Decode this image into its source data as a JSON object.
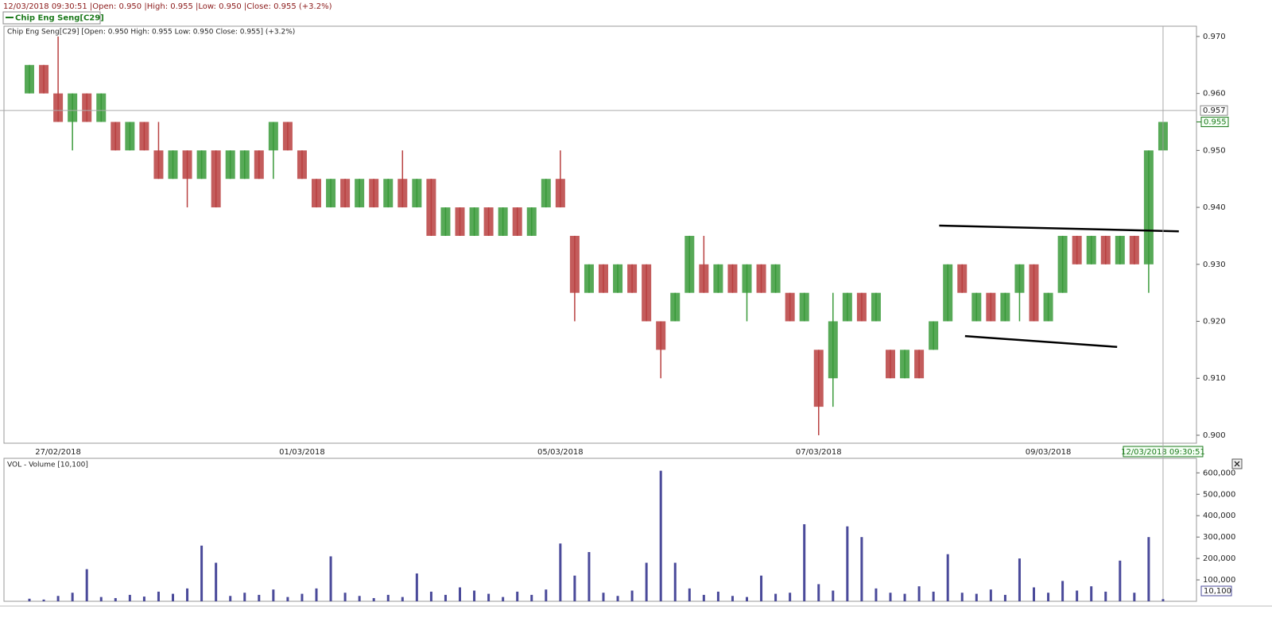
{
  "header": "12/03/2018 09:30:51 |Open: 0.950 |High: 0.955 |Low: 0.950 |Close: 0.955 (+3.2%)",
  "chart_data": [
    {
      "type": "ohlc",
      "title": "Chip Eng Seng[C29]",
      "subtitle": "Chip Eng Seng[C29] [Open: 0.950  High: 0.955  Low: 0.950  Close: 0.955] (+3.2%)",
      "categories": [
        null,
        null,
        "27/02/2018",
        null,
        null,
        null,
        null,
        null,
        null,
        null,
        null,
        null,
        null,
        null,
        null,
        null,
        null,
        null,
        null,
        "01/03/2018",
        null,
        null,
        null,
        null,
        null,
        null,
        null,
        null,
        null,
        null,
        null,
        null,
        null,
        null,
        null,
        null,
        null,
        "05/03/2018",
        null,
        null,
        null,
        null,
        null,
        null,
        null,
        null,
        null,
        null,
        null,
        null,
        null,
        null,
        null,
        null,
        null,
        "07/03/2018",
        null,
        null,
        null,
        null,
        null,
        null,
        null,
        null,
        null,
        null,
        null,
        null,
        null,
        null,
        null,
        "09/03/2018",
        null,
        null,
        null,
        null,
        null,
        null,
        null,
        "12/03/2018 09:30:51"
      ],
      "open": [
        0.96,
        0.965,
        0.96,
        0.955,
        0.96,
        0.955,
        0.955,
        0.95,
        0.955,
        0.95,
        0.945,
        0.95,
        0.945,
        0.95,
        0.945,
        0.945,
        0.95,
        0.95,
        0.955,
        0.95,
        0.945,
        0.94,
        0.945,
        0.94,
        0.945,
        0.94,
        0.945,
        0.94,
        0.945,
        0.935,
        0.94,
        0.935,
        0.94,
        0.935,
        0.94,
        0.935,
        0.94,
        0.945,
        0.935,
        0.925,
        0.93,
        0.925,
        0.93,
        0.93,
        0.92,
        0.92,
        0.925,
        0.93,
        0.925,
        0.93,
        0.925,
        0.93,
        0.925,
        0.925,
        0.92,
        0.915,
        0.91,
        0.92,
        0.925,
        0.92,
        0.915,
        0.91,
        0.915,
        0.915,
        0.92,
        0.93,
        0.92,
        0.925,
        0.92,
        0.925,
        0.93,
        0.92,
        0.925,
        0.935,
        0.93,
        0.935,
        0.93,
        0.935,
        0.93,
        0.95
      ],
      "high": [
        0.965,
        0.965,
        0.97,
        0.96,
        0.96,
        0.96,
        0.955,
        0.955,
        0.955,
        0.955,
        0.95,
        0.95,
        0.95,
        0.95,
        0.95,
        0.95,
        0.95,
        0.955,
        0.955,
        0.95,
        0.945,
        0.945,
        0.945,
        0.945,
        0.945,
        0.945,
        0.95,
        0.945,
        0.945,
        0.94,
        0.94,
        0.94,
        0.94,
        0.94,
        0.94,
        0.94,
        0.945,
        0.95,
        0.935,
        0.93,
        0.93,
        0.93,
        0.93,
        0.93,
        0.92,
        0.925,
        0.935,
        0.935,
        0.93,
        0.93,
        0.93,
        0.93,
        0.93,
        0.925,
        0.925,
        0.915,
        0.925,
        0.925,
        0.925,
        0.925,
        0.915,
        0.915,
        0.915,
        0.92,
        0.93,
        0.93,
        0.925,
        0.925,
        0.925,
        0.93,
        0.93,
        0.925,
        0.935,
        0.935,
        0.935,
        0.935,
        0.935,
        0.935,
        0.95,
        0.955
      ],
      "low": [
        0.96,
        0.96,
        0.955,
        0.95,
        0.955,
        0.955,
        0.95,
        0.95,
        0.95,
        0.945,
        0.945,
        0.94,
        0.945,
        0.94,
        0.945,
        0.945,
        0.945,
        0.945,
        0.95,
        0.945,
        0.94,
        0.94,
        0.94,
        0.94,
        0.94,
        0.94,
        0.94,
        0.94,
        0.935,
        0.935,
        0.935,
        0.935,
        0.935,
        0.935,
        0.935,
        0.935,
        0.94,
        0.94,
        0.92,
        0.925,
        0.925,
        0.925,
        0.925,
        0.92,
        0.91,
        0.92,
        0.925,
        0.925,
        0.925,
        0.925,
        0.92,
        0.925,
        0.925,
        0.92,
        0.92,
        0.9,
        0.905,
        0.92,
        0.92,
        0.92,
        0.91,
        0.91,
        0.91,
        0.915,
        0.92,
        0.925,
        0.92,
        0.92,
        0.92,
        0.92,
        0.92,
        0.92,
        0.925,
        0.93,
        0.93,
        0.93,
        0.93,
        0.93,
        0.925,
        0.95
      ],
      "close": [
        0.965,
        0.96,
        0.955,
        0.96,
        0.955,
        0.96,
        0.95,
        0.955,
        0.95,
        0.945,
        0.95,
        0.945,
        0.95,
        0.94,
        0.95,
        0.95,
        0.945,
        0.955,
        0.95,
        0.945,
        0.94,
        0.945,
        0.94,
        0.945,
        0.94,
        0.945,
        0.94,
        0.945,
        0.935,
        0.94,
        0.935,
        0.94,
        0.935,
        0.94,
        0.935,
        0.94,
        0.945,
        0.94,
        0.925,
        0.93,
        0.925,
        0.93,
        0.925,
        0.92,
        0.915,
        0.925,
        0.935,
        0.925,
        0.93,
        0.925,
        0.93,
        0.925,
        0.93,
        0.92,
        0.925,
        0.905,
        0.92,
        0.925,
        0.92,
        0.925,
        0.91,
        0.915,
        0.91,
        0.92,
        0.93,
        0.925,
        0.925,
        0.92,
        0.925,
        0.93,
        0.92,
        0.925,
        0.935,
        0.93,
        0.935,
        0.93,
        0.935,
        0.93,
        0.95,
        0.955
      ],
      "up_color": "#3a9a3a",
      "down_color": "#b84040",
      "ylim": [
        0.8986,
        0.9718
      ],
      "yticks": [
        {
          "value": 0.9,
          "label": "0.900"
        },
        {
          "value": 0.91,
          "label": "0.910"
        },
        {
          "value": 0.92,
          "label": "0.920"
        },
        {
          "value": 0.93,
          "label": "0.930"
        },
        {
          "value": 0.94,
          "label": "0.940"
        },
        {
          "value": 0.95,
          "label": "0.950"
        },
        {
          "value": 0.96,
          "label": "0.960"
        },
        {
          "value": 0.97,
          "label": "0.970"
        }
      ],
      "crosshair_y": 0.957,
      "trendlines": [
        {
          "x": [
            63.4,
            80.1
          ],
          "y": [
            0.9368,
            0.9358
          ]
        },
        {
          "x": [
            65.2,
            75.8
          ],
          "y": [
            0.9174,
            0.9155
          ]
        }
      ]
    },
    {
      "type": "bar",
      "title": "VOL - Volume [10,100]",
      "color": "#4a4a9a",
      "values": [
        12000,
        8000,
        25000,
        40000,
        150000,
        20000,
        15000,
        30000,
        22000,
        45000,
        35000,
        60000,
        260000,
        180000,
        25000,
        40000,
        30000,
        55000,
        20000,
        35000,
        60000,
        210000,
        40000,
        25000,
        15000,
        30000,
        20000,
        130000,
        45000,
        30000,
        65000,
        50000,
        35000,
        20000,
        45000,
        30000,
        55000,
        270000,
        120000,
        230000,
        40000,
        25000,
        50000,
        180000,
        610000,
        180000,
        60000,
        30000,
        45000,
        25000,
        20000,
        120000,
        35000,
        40000,
        360000,
        80000,
        50000,
        350000,
        300000,
        60000,
        40000,
        35000,
        70000,
        45000,
        220000,
        40000,
        35000,
        55000,
        30000,
        200000,
        65000,
        40000,
        95000,
        50000,
        70000,
        45000,
        190000,
        40000,
        300000,
        10100
      ],
      "value_labels": [
        null,
        null,
        null,
        null,
        null,
        null,
        null,
        null,
        null,
        null,
        null,
        null,
        null,
        null,
        null,
        null,
        null,
        null,
        null,
        null,
        null,
        null,
        null,
        null,
        null,
        null,
        null,
        null,
        null,
        null,
        null,
        null,
        null,
        null,
        null,
        null,
        null,
        null,
        null,
        null,
        null,
        null,
        null,
        null,
        null,
        null,
        null,
        null,
        null,
        null,
        null,
        null,
        null,
        null,
        null,
        null,
        null,
        null,
        null,
        null,
        null,
        null,
        null,
        null,
        null,
        null,
        null,
        null,
        null,
        null,
        null,
        null,
        null,
        null,
        null,
        null,
        null,
        null,
        null,
        "10,100"
      ],
      "ylim": [
        0,
        668000
      ],
      "yticks": [
        {
          "value": 100000,
          "label": "100,000"
        },
        {
          "value": 200000,
          "label": "200,000"
        },
        {
          "value": 300000,
          "label": "300,000"
        },
        {
          "value": 400000,
          "label": "400,000"
        },
        {
          "value": 500000,
          "label": "500,000"
        },
        {
          "value": 600000,
          "label": "600,000"
        }
      ]
    }
  ]
}
